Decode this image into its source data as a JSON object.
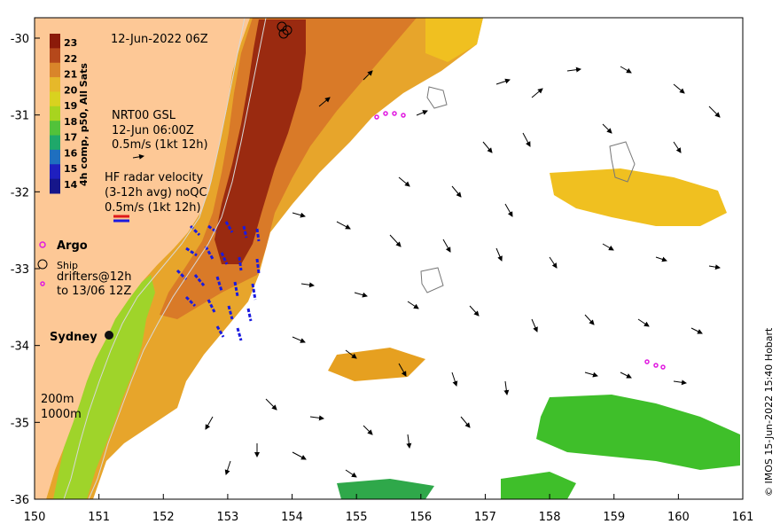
{
  "map": {
    "datetime": "12-Jun-2022 06Z",
    "colorbar": {
      "label": "4h comp, p50, All Sats",
      "ticks": [
        "23",
        "22",
        "21",
        "20",
        "19",
        "18",
        "17",
        "16",
        "15",
        "14"
      ],
      "colors": [
        "#8b1a0a",
        "#b5481b",
        "#d9852a",
        "#e6b82a",
        "#d9d21f",
        "#a8d41f",
        "#52c23a",
        "#1fa86a",
        "#1f6fbf",
        "#1f1fbf",
        "#16168a"
      ]
    },
    "gsl": {
      "line1": "NRT00 GSL",
      "line2": "12-Jun 06:00Z",
      "line3": "0.5m/s (1kt 12h)"
    },
    "hf_radar": {
      "line1": "HF radar velocity",
      "line2": "(3-12h avg) noQC",
      "line3": "0.5m/s (1kt 12h)"
    },
    "legend": {
      "argo": "Argo",
      "ship": "Ship",
      "drifters_1": "drifters@12h",
      "drifters_2": "to 13/06 12Z",
      "contour_200": "200m",
      "contour_1000": "1000m"
    },
    "city": "Sydney",
    "copyright": "© IMOS 15-Jun-2022 15:40 Hobart",
    "x_ticks": [
      "150",
      "151",
      "152",
      "153",
      "154",
      "155",
      "156",
      "157",
      "158",
      "159",
      "160",
      "161"
    ],
    "y_ticks": [
      "-30",
      "-31",
      "-32",
      "-33",
      "-34",
      "-35",
      "-36"
    ],
    "colors": {
      "land": "#fdc896",
      "warm_core": "#9a2a10",
      "ocean_bg": "#ffffff",
      "radar_blue": "#1a1adf",
      "argo_magenta": "#e01ae0"
    }
  }
}
